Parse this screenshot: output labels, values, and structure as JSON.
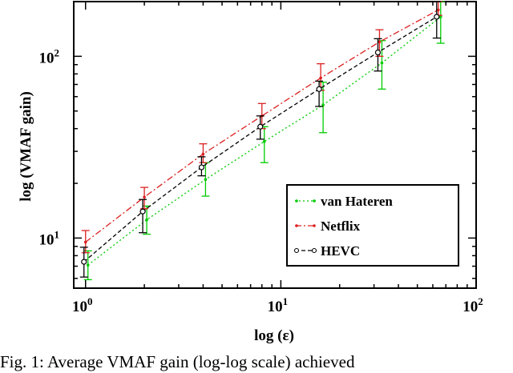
{
  "chart_data": {
    "type": "line",
    "xlabel": "log (ε)",
    "ylabel": "log (VMAF gain)",
    "xscale": "log",
    "yscale": "log",
    "xlim": [
      0.87,
      100
    ],
    "ylim": [
      5.3,
      200
    ],
    "x_ticks": [
      {
        "base": "10",
        "exp": "0",
        "value": 1
      },
      {
        "base": "10",
        "exp": "1",
        "value": 10
      },
      {
        "base": "10",
        "exp": "2",
        "value": 100
      }
    ],
    "y_ticks": [
      {
        "base": "10",
        "exp": "1",
        "value": 10
      },
      {
        "base": "10",
        "exp": "2",
        "value": 100
      }
    ],
    "grid": false,
    "legend_position": "lower-right",
    "x": [
      1,
      2,
      4,
      8,
      16,
      32,
      64
    ],
    "series": [
      {
        "name": "van Hateren",
        "color": "#00cc00",
        "dash": "dots",
        "marker": "dot",
        "values": [
          7.1,
          12.6,
          21,
          34,
          54,
          92,
          165
        ],
        "err_low": [
          5.9,
          10.5,
          17,
          26,
          38,
          66,
          118
        ],
        "err_high": [
          8.5,
          15,
          26,
          41,
          72,
          122,
          200
        ]
      },
      {
        "name": "Netflix",
        "color": "#dd2020",
        "dash": "dashdot",
        "marker": "dot",
        "values": [
          9.5,
          16.8,
          29,
          47,
          76,
          120,
          180
        ],
        "err_low": [
          8.3,
          14.5,
          26,
          40,
          65,
          100,
          168
        ],
        "err_high": [
          11,
          19,
          33,
          55,
          91,
          140,
          200
        ]
      },
      {
        "name": "HEVC",
        "color": "#000000",
        "dash": "dashed",
        "marker": "circle",
        "values": [
          7.4,
          14,
          24.5,
          41,
          66,
          105,
          165
        ],
        "err_low": [
          6.1,
          10.7,
          22,
          35,
          53,
          83,
          126
        ],
        "err_high": [
          8.9,
          16.3,
          28,
          47,
          73,
          125,
          200
        ]
      }
    ]
  },
  "caption": "Fig. 1: Average VMAF gain (log-log scale) achieved"
}
